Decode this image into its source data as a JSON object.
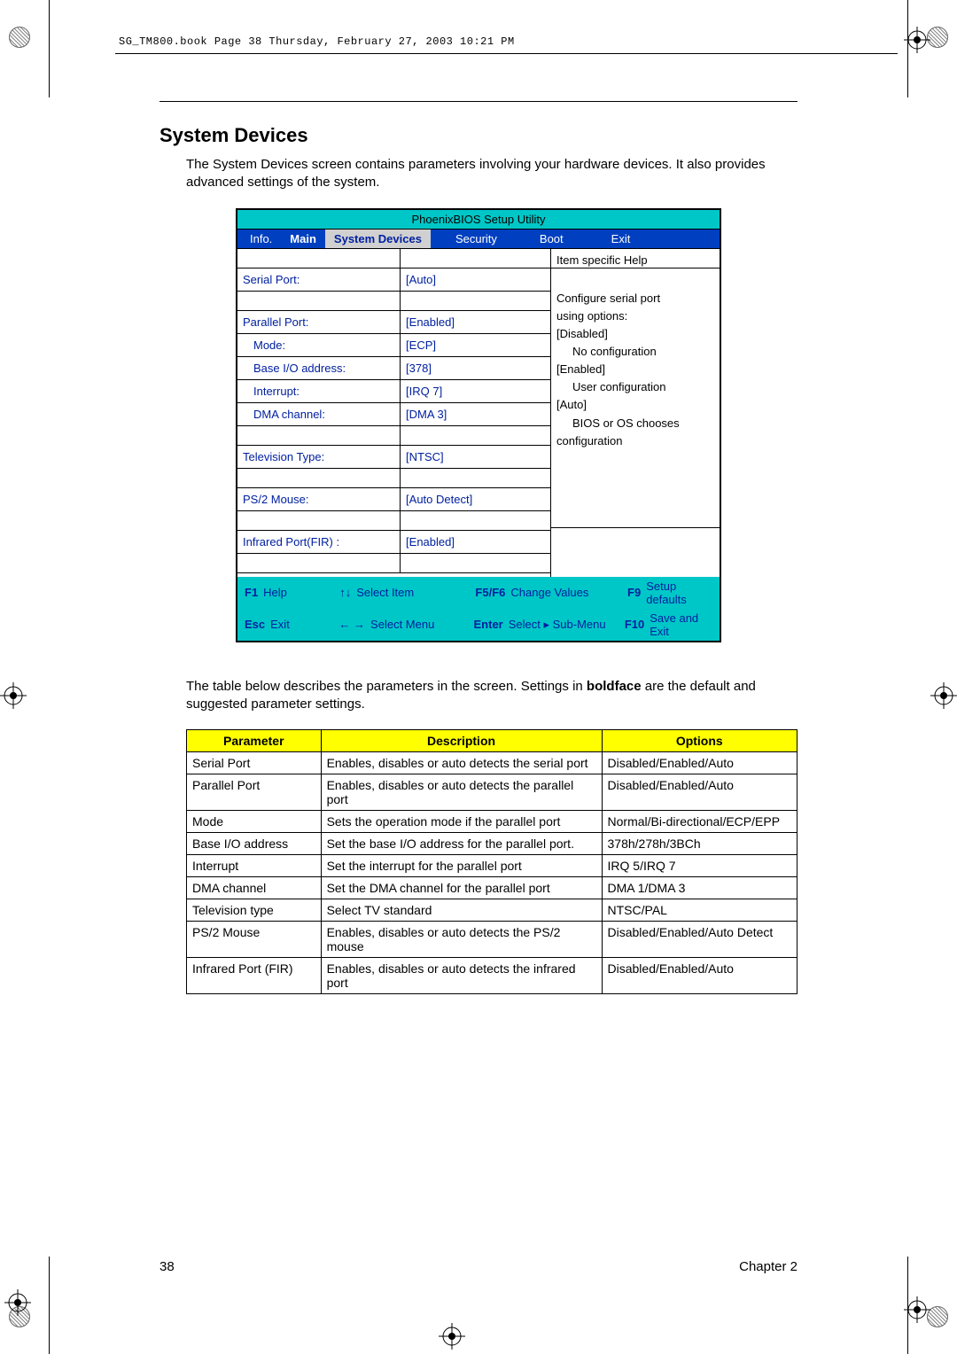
{
  "header": {
    "running_head": "SG_TM800.book  Page 38  Thursday, February 27, 2003  10:21 PM"
  },
  "section": {
    "title": "System Devices",
    "intro": "The System Devices screen contains parameters involving your hardware devices. It also provides advanced settings of the system.",
    "table_intro_before": "The table below describes the parameters in the screen. Settings in ",
    "table_intro_bold": "boldface",
    "table_intro_after": " are the default and suggested parameter settings."
  },
  "bios": {
    "title": "PhoenixBIOS Setup Utility",
    "menu": [
      "Info.",
      "Main",
      "System Devices",
      "Security",
      "Boot",
      "Exit"
    ],
    "menu_bold_index": 1,
    "menu_selected_index": 2,
    "rows": [
      {
        "label": "",
        "value": ""
      },
      {
        "label": "Serial Port:",
        "value": "[Auto]"
      },
      {
        "label": "",
        "value": ""
      },
      {
        "label": "Parallel Port:",
        "value": "[Enabled]"
      },
      {
        "label": "Mode:",
        "value": "[ECP]",
        "indent": true
      },
      {
        "label": "Base I/O address:",
        "value": "[378]",
        "indent": true
      },
      {
        "label": "Interrupt:",
        "value": "[IRQ 7]",
        "indent": true
      },
      {
        "label": "DMA channel:",
        "value": "[DMA 3]",
        "indent": true
      },
      {
        "label": "",
        "value": ""
      },
      {
        "label": "Television Type:",
        "value": "[NTSC]"
      },
      {
        "label": "",
        "value": ""
      },
      {
        "label": "PS/2 Mouse:",
        "value": "[Auto Detect]"
      },
      {
        "label": "",
        "value": ""
      },
      {
        "label": "Infrared Port(FIR) :",
        "value": "[Enabled]"
      },
      {
        "label": "",
        "value": ""
      }
    ],
    "help_header": "Item specific Help",
    "help_lines": [
      "",
      "Configure serial port",
      "using options:",
      "[Disabled]",
      "    No configuration",
      "[Enabled]",
      "    User configuration",
      "[Auto]",
      "    BIOS or OS chooses",
      "configuration"
    ],
    "footer": {
      "row1": [
        {
          "k": "F1",
          "t": "Help"
        },
        {
          "arrow": "↑↓",
          "t": "Select Item"
        },
        {
          "k": "F5/F6",
          "t": "Change Values"
        },
        {
          "k": "F9",
          "t": "Setup defaults"
        }
      ],
      "row2": [
        {
          "k": "Esc",
          "t": "Exit"
        },
        {
          "arrow": "← →",
          "t": "Select Menu"
        },
        {
          "k": "Enter",
          "t": "Select ▸ Sub-Menu"
        },
        {
          "k": "F10",
          "t": "Save and Exit"
        }
      ]
    }
  },
  "params": {
    "headers": [
      "Parameter",
      "Description",
      "Options"
    ],
    "col_widths": [
      "22%",
      "46%",
      "32%"
    ],
    "rows": [
      [
        "Serial Port",
        "Enables, disables or auto detects the serial port",
        "Disabled/Enabled/Auto"
      ],
      [
        "Parallel Port",
        "Enables, disables or auto detects the parallel port",
        "Disabled/Enabled/Auto"
      ],
      [
        "Mode",
        "Sets the operation mode if the parallel port",
        "Normal/Bi-directional/ECP/EPP"
      ],
      [
        "Base I/O address",
        "Set the base I/O address for the parallel port.",
        "378h/278h/3BCh"
      ],
      [
        "Interrupt",
        "Set the interrupt for the parallel port",
        "IRQ 5/IRQ 7"
      ],
      [
        "DMA channel",
        "Set the DMA channel for the parallel port",
        "DMA 1/DMA 3"
      ],
      [
        "Television type",
        "Select TV standard",
        "NTSC/PAL"
      ],
      [
        "PS/2 Mouse",
        "Enables, disables or auto detects the PS/2 mouse",
        "Disabled/Enabled/Auto Detect"
      ],
      [
        "Infrared Port (FIR)",
        "Enables, disables or auto detects the infrared port",
        "Disabled/Enabled/Auto"
      ]
    ]
  },
  "footer": {
    "page": "38",
    "chapter": "Chapter 2"
  },
  "colors": {
    "bios_teal": "#00c7c7",
    "bios_blue": "#0040c0",
    "bios_text_blue": "#0020a0",
    "yellow": "#ffff00"
  }
}
